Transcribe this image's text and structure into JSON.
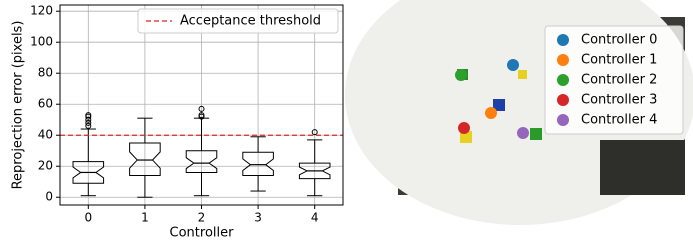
{
  "chart_data": [
    {
      "type": "box",
      "x_label": "Controller",
      "y_label": "Reprojection error (pixels)",
      "categories": [
        "0",
        "1",
        "2",
        "3",
        "4"
      ],
      "whisker_low": [
        1,
        0,
        1,
        4,
        1
      ],
      "q1": [
        9,
        14,
        16,
        14,
        12
      ],
      "median": [
        16,
        24,
        22,
        21,
        17
      ],
      "q3": [
        23,
        35,
        30,
        29,
        22
      ],
      "whisker_high": [
        44,
        51,
        51,
        39,
        37
      ],
      "fliers": [
        [
          46,
          48,
          50,
          52,
          53
        ],
        [],
        [
          52,
          53,
          57
        ],
        [],
        [
          42
        ]
      ],
      "notch": true,
      "ylim": [
        -5,
        124
      ],
      "yticks": [
        0,
        20,
        40,
        60,
        80,
        100,
        120
      ],
      "grid": true,
      "hline": {
        "value": 40,
        "label": "Acceptance threshold",
        "color": "#d62728"
      },
      "legend": "upper right"
    },
    {
      "type": "scatter",
      "xlim": [
        0,
        287
      ],
      "ylim": [
        178,
        0
      ],
      "legend": "upper right",
      "series": [
        {
          "name": "Controller 0",
          "color": "#1f77b4",
          "x": [
            115
          ],
          "y": [
            48
          ]
        },
        {
          "name": "Controller 1",
          "color": "#ff7f0e",
          "x": [
            93
          ],
          "y": [
            96
          ]
        },
        {
          "name": "Controller 2",
          "color": "#2ca02c",
          "x": [
            63
          ],
          "y": [
            58
          ]
        },
        {
          "name": "Controller 3",
          "color": "#d62728",
          "x": [
            66
          ],
          "y": [
            111
          ]
        },
        {
          "name": "Controller 4",
          "color": "#9467bd",
          "x": [
            125
          ],
          "y": [
            116
          ]
        }
      ]
    }
  ]
}
